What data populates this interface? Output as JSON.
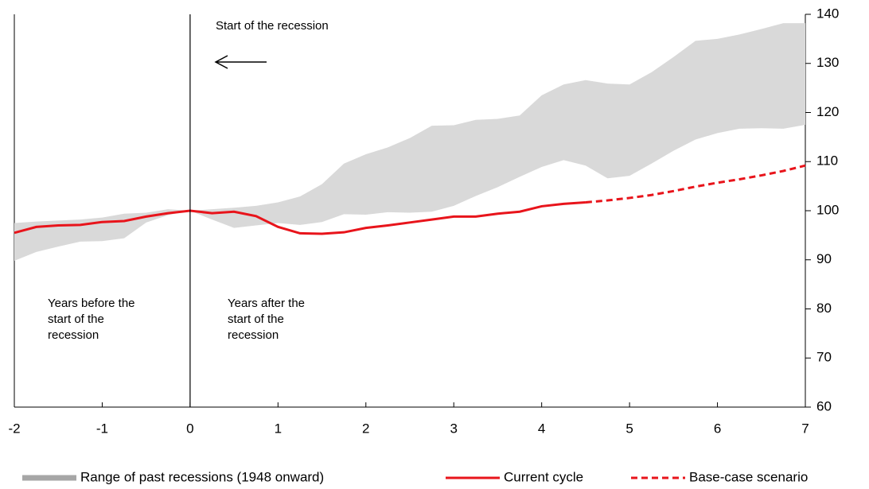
{
  "chart_data": {
    "type": "line",
    "x": [
      -2,
      -1.75,
      -1.5,
      -1.25,
      -1,
      -0.75,
      -0.5,
      -0.25,
      0,
      0.25,
      0.5,
      0.75,
      1,
      1.25,
      1.5,
      1.75,
      2,
      2.25,
      2.5,
      2.75,
      3,
      3.25,
      3.5,
      3.75,
      4,
      4.25,
      4.5,
      4.75,
      5,
      5.25,
      5.5,
      5.75,
      6,
      6.25,
      6.5,
      6.75,
      7
    ],
    "series": [
      {
        "name": "Range of past recessions (1948 onward)",
        "color": "#d9d9d9",
        "upper": [
          97.5,
          97.8,
          98.0,
          98.2,
          98.6,
          99.4,
          99.6,
          100.3,
          100,
          100.3,
          100.6,
          101.0,
          101.7,
          102.9,
          105.4,
          109.6,
          111.5,
          112.9,
          114.8,
          117.3,
          117.4,
          118.5,
          118.7,
          119.4,
          123.5,
          125.7,
          126.6,
          125.9,
          125.7,
          128.2,
          131.3,
          134.6,
          135.0,
          135.9,
          137.0,
          138.2,
          138.2
        ],
        "lower": [
          89.8,
          91.6,
          92.7,
          93.7,
          93.8,
          94.4,
          97.6,
          99.1,
          100,
          98.2,
          96.5,
          97.0,
          97.5,
          97.1,
          97.7,
          99.3,
          99.2,
          99.7,
          99.6,
          99.8,
          101.0,
          103.0,
          104.8,
          106.9,
          108.9,
          110.3,
          109.2,
          106.6,
          107.1,
          109.6,
          112.2,
          114.5,
          115.8,
          116.7,
          116.8,
          116.7,
          117.5
        ]
      },
      {
        "name": "Current cycle",
        "color": "#e8141b",
        "dash": false,
        "values": [
          95.5,
          96.7,
          97.0,
          97.1,
          97.7,
          97.9,
          98.8,
          99.5,
          100,
          99.5,
          99.8,
          98.9,
          96.7,
          95.4,
          95.3,
          95.6,
          96.5,
          97.0,
          97.6,
          98.2,
          98.8,
          98.8,
          99.4,
          99.8,
          100.9,
          101.4,
          101.7,
          null,
          null,
          null,
          null,
          null,
          null,
          null,
          null,
          null,
          null
        ]
      },
      {
        "name": "Base-case scenario",
        "color": "#e8141b",
        "dash": true,
        "values": [
          null,
          null,
          null,
          null,
          null,
          null,
          null,
          null,
          null,
          null,
          null,
          null,
          null,
          null,
          null,
          null,
          null,
          null,
          null,
          null,
          null,
          null,
          null,
          null,
          null,
          null,
          101.7,
          102.1,
          102.6,
          103.2,
          104.0,
          104.9,
          105.7,
          106.4,
          107.2,
          108.1,
          109.2
        ]
      }
    ],
    "xlim": [
      -2,
      7
    ],
    "xticks": [
      -2,
      -1,
      0,
      1,
      2,
      3,
      4,
      5,
      6,
      7
    ],
    "ylim": [
      60,
      140
    ],
    "yticks": [
      60,
      70,
      80,
      90,
      100,
      110,
      120,
      130,
      140
    ],
    "y_axis_side": "right",
    "grid": false,
    "annotations": {
      "start": "Start of the recession",
      "before": [
        "Years before the",
        "start of the",
        "recession"
      ],
      "after": [
        "Years after the",
        "start of the",
        "recession"
      ]
    }
  }
}
